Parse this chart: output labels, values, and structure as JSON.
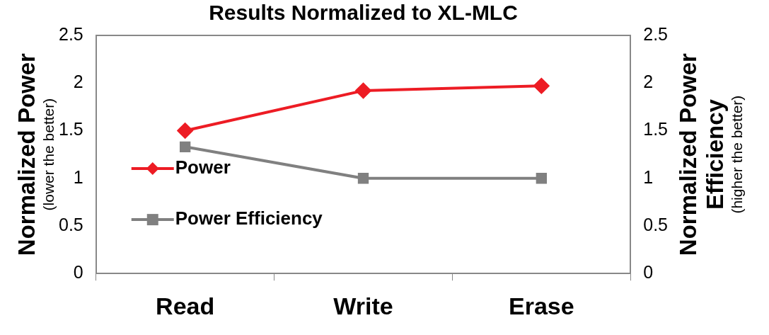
{
  "chart_data": {
    "type": "line",
    "title": "Results Normalized to XL-MLC",
    "ylabel": "Normalized Power\n(lower the better)",
    "y2label": "Normalized Power\nEfficiency\n(higher the better)",
    "categories": [
      "Read",
      "Write",
      "Erase"
    ],
    "series": [
      {
        "name": "Power",
        "color": "#ed1c24",
        "values": [
          1.5,
          1.92,
          1.97
        ],
        "marker": "diamond"
      },
      {
        "name": "Power Efficiency",
        "color": "#808080",
        "values": [
          1.33,
          1.0,
          1.0
        ],
        "marker": "square",
        "axis": "y2"
      }
    ],
    "ylim": [
      0,
      2.5
    ],
    "yticks": [
      0,
      0.5,
      1,
      1.5,
      2,
      2.5
    ],
    "y2lim": [
      0,
      2.5
    ],
    "y2ticks": [
      0,
      0.5,
      1,
      1.5,
      2,
      2.5
    ],
    "grid": false,
    "legend": "left",
    "line_style": "solid"
  }
}
